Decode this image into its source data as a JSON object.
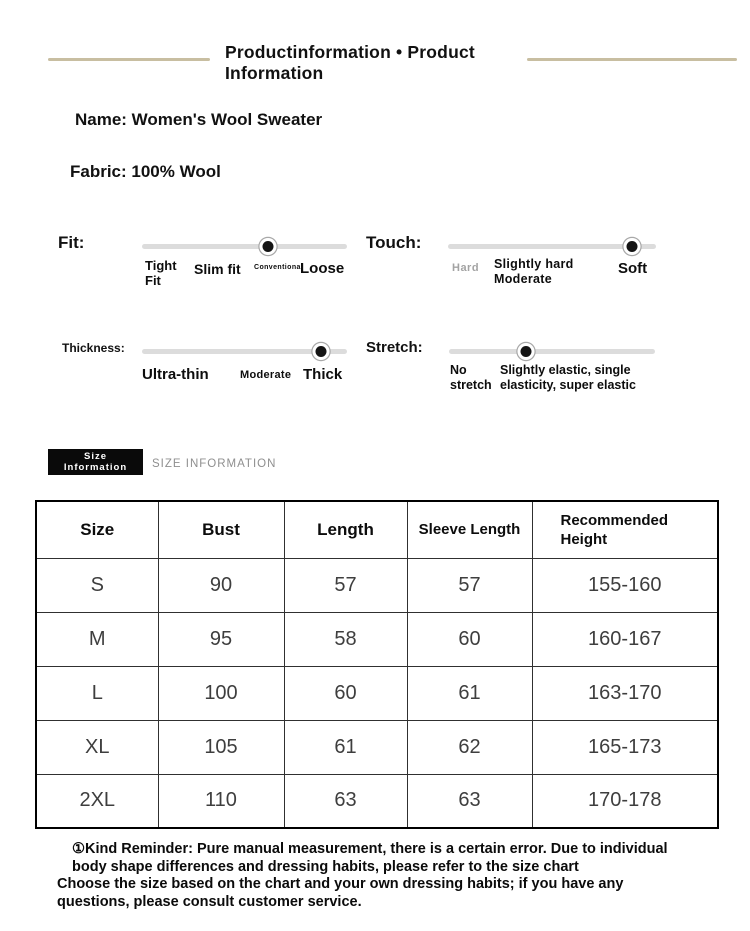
{
  "header": {
    "title": "Productinformation • Product\nInformation"
  },
  "product": {
    "name": "Name: Women's Wool Sweater",
    "fabric": "Fabric: 100% Wool"
  },
  "sliders": {
    "fit": {
      "label": "Fit:",
      "value_pct": 61.5,
      "ticks": [
        "Tight\nFit",
        "Slim fit",
        "Conventional",
        "Loose"
      ]
    },
    "touch": {
      "label": "Touch:",
      "value_pct": 88.5,
      "ticks": [
        "Hard",
        "Slightly hard\nModerate",
        "Soft"
      ]
    },
    "thickness": {
      "label": "Thickness:",
      "value_pct": 87.3,
      "ticks": [
        "Ultra-thin",
        "Moderate",
        "Thick"
      ]
    },
    "stretch": {
      "label": "Stretch:",
      "value_pct": 37.4,
      "ticks": [
        "No\nstretch",
        "Slightly elastic, single\nelasticity, super elastic"
      ]
    }
  },
  "size_section": {
    "badge": "Size\nInformation",
    "heading": "SIZE INFORMATION"
  },
  "size_table": {
    "headers": [
      "Size",
      "Bust",
      "Length",
      "Sleeve Length",
      "Recommended\nHeight"
    ],
    "rows": [
      [
        "S",
        "90",
        "57",
        "57",
        "155-160"
      ],
      [
        "M",
        "95",
        "58",
        "60",
        "160-167"
      ],
      [
        "L",
        "100",
        "60",
        "61",
        "163-170"
      ],
      [
        "XL",
        "105",
        "61",
        "62",
        "165-173"
      ],
      [
        "2XL",
        "110",
        "63",
        "63",
        "170-178"
      ]
    ]
  },
  "notes": {
    "reminder": "①Kind Reminder: Pure manual measurement, there is a certain error. Due to individual\nbody shape differences and dressing habits, please refer to the size chart",
    "choose": "Choose the size based on the chart and your own dressing habits; if you have any\nquestions, please consult customer service."
  }
}
